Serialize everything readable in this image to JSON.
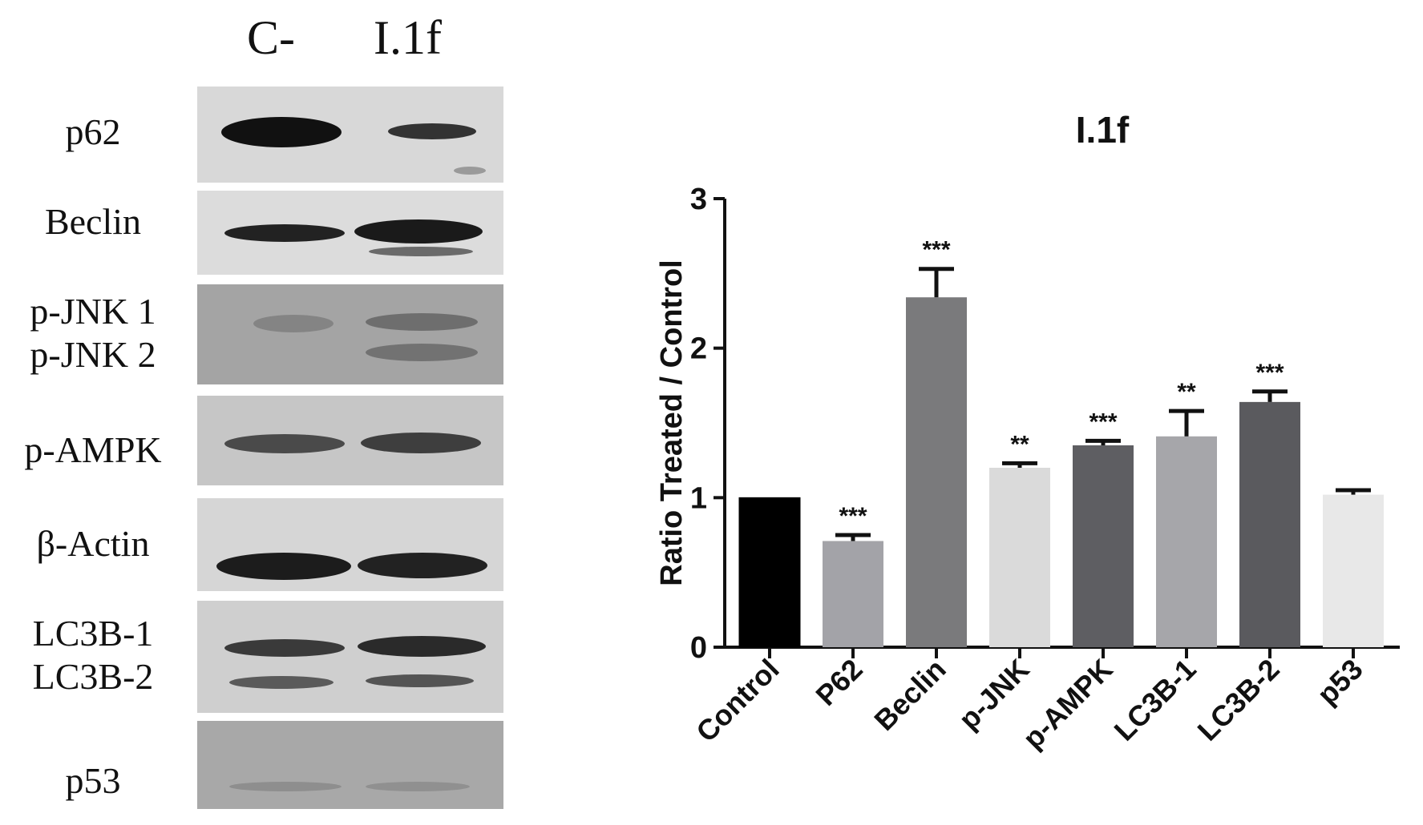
{
  "blot": {
    "lanes": [
      "C-",
      "I.1f"
    ],
    "rows": [
      {
        "label_lines": [
          "p62"
        ]
      },
      {
        "label_lines": [
          "Beclin"
        ]
      },
      {
        "label_lines": [
          "p-JNK 1",
          "p-JNK 2"
        ]
      },
      {
        "label_lines": [
          "p-AMPK"
        ]
      },
      {
        "label_lines": [
          "β-Actin"
        ]
      },
      {
        "label_lines": [
          "LC3B-1",
          "LC3B-2"
        ]
      },
      {
        "label_lines": [
          "p53"
        ]
      }
    ]
  },
  "chart_data": {
    "type": "bar",
    "title": "I.1f",
    "xlabel": "",
    "ylabel": "Ratio Treated / Control",
    "ylim": [
      0,
      3
    ],
    "yticks": [
      0,
      1,
      2,
      3
    ],
    "grid": false,
    "categories": [
      "Control",
      "P62",
      "Beclin",
      "p-JNK",
      "p-AMPK",
      "LC3B-1",
      "LC3B-2",
      "p53"
    ],
    "values": [
      1.0,
      0.71,
      2.34,
      1.2,
      1.35,
      1.41,
      1.64,
      1.02
    ],
    "errors": [
      0,
      0.04,
      0.19,
      0.03,
      0.03,
      0.17,
      0.07,
      0.03
    ],
    "significance": [
      "",
      "***",
      "***",
      "**",
      "***",
      "**",
      "***",
      ""
    ],
    "bar_colors": [
      "#000000",
      "#a3a3a8",
      "#7a7a7c",
      "#dadada",
      "#5e5e62",
      "#a6a6aa",
      "#5a5a5e",
      "#e8e8e8"
    ]
  }
}
